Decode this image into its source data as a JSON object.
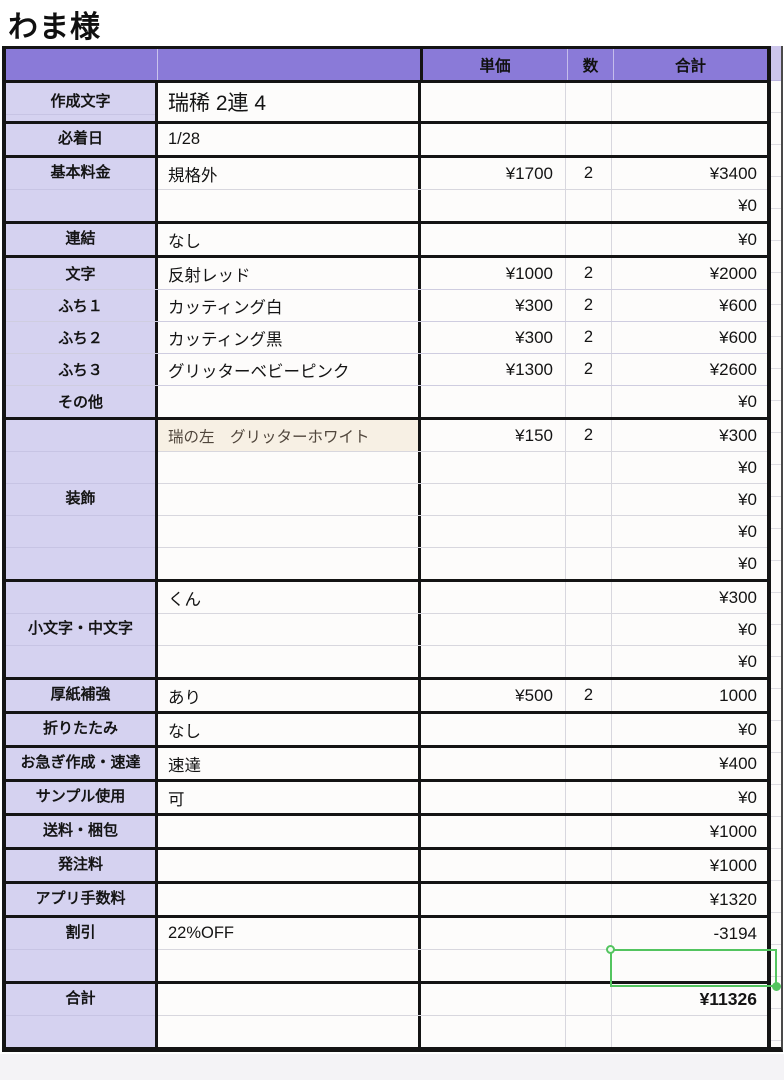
{
  "title": "わま様",
  "table": {
    "header": {
      "unit_price": "単価",
      "quantity": "数",
      "total": "合計"
    },
    "sections": [
      {
        "label": "作成文字",
        "label_pos": "middle",
        "rows": [
          {
            "value": "瑞稀 2連 4",
            "large": true,
            "tall": true
          }
        ]
      },
      {
        "label": "必着日",
        "label_pos": "middle",
        "rows": [
          {
            "value": "1/28"
          }
        ]
      },
      {
        "label": "基本料金",
        "label_pos": "first",
        "rows": [
          {
            "value": "規格外",
            "unit": "¥1700",
            "qty": "2",
            "total": "¥3400"
          },
          {
            "total": "¥0"
          }
        ]
      },
      {
        "label": "連結",
        "label_pos": "middle",
        "rows": [
          {
            "value": "なし",
            "total": "¥0"
          }
        ]
      },
      {
        "per_row": true,
        "rows": [
          {
            "label": "文字",
            "value": "反射レッド",
            "unit": "¥1000",
            "qty": "2",
            "total": "¥2000"
          },
          {
            "label": "ふち１",
            "value": "カッティング白",
            "unit": "¥300",
            "qty": "2",
            "total": "¥600"
          },
          {
            "label": "ふち２",
            "value": "カッティング黒",
            "unit": "¥300",
            "qty": "2",
            "total": "¥600"
          },
          {
            "label": "ふち３",
            "value": "グリッターベビーピンク",
            "unit": "¥1300",
            "qty": "2",
            "total": "¥2600"
          },
          {
            "label": "その他",
            "total": "¥0"
          }
        ]
      },
      {
        "label": "装飾",
        "label_pos": "middle",
        "rows": [
          {
            "value": "瑞の左　グリッターホワイト",
            "cream": true,
            "unit": "¥150",
            "qty": "2",
            "total": "¥300"
          },
          {
            "total": "¥0"
          },
          {
            "total": "¥0"
          },
          {
            "total": "¥0"
          },
          {
            "total": "¥0"
          }
        ]
      },
      {
        "label": "小文字・中文字",
        "label_pos": "middle",
        "rows": [
          {
            "value": "くん",
            "total": "¥300"
          },
          {
            "total": "¥0"
          },
          {
            "total": "¥0"
          }
        ]
      },
      {
        "label": "厚紙補強",
        "label_pos": "middle",
        "rows": [
          {
            "value": "あり",
            "unit": "¥500",
            "qty": "2",
            "total": "1000"
          }
        ]
      },
      {
        "label": "折りたたみ",
        "label_pos": "middle",
        "rows": [
          {
            "value": "なし",
            "total": "¥0"
          }
        ]
      },
      {
        "label": "お急ぎ作成・速達",
        "label_pos": "middle",
        "rows": [
          {
            "value": "速達",
            "total": "¥400"
          }
        ]
      },
      {
        "label": "サンプル使用",
        "label_pos": "middle",
        "rows": [
          {
            "value": "可",
            "total": "¥0"
          }
        ]
      },
      {
        "label": "送料・梱包",
        "label_pos": "middle",
        "rows": [
          {
            "total": "¥1000"
          }
        ]
      },
      {
        "label": "発注料",
        "label_pos": "middle",
        "rows": [
          {
            "total": "¥1000"
          }
        ]
      },
      {
        "label": "アプリ手数料",
        "label_pos": "middle",
        "rows": [
          {
            "total": "¥1320"
          }
        ]
      },
      {
        "label": "割引",
        "label_pos": "first",
        "rows": [
          {
            "value": "22%OFF",
            "total": "-3194"
          },
          {
            "selected": true
          }
        ]
      },
      {
        "label": "合計",
        "label_pos": "first",
        "rows": [
          {
            "total": "¥11326",
            "bold": true
          },
          {}
        ]
      }
    ]
  },
  "colors": {
    "header_purple": "#8a7ad8",
    "label_lavender": "#d5d2f0",
    "cream_cell": "#f7f0e4",
    "selection_green": "#53c45f",
    "border_black": "#141414"
  }
}
